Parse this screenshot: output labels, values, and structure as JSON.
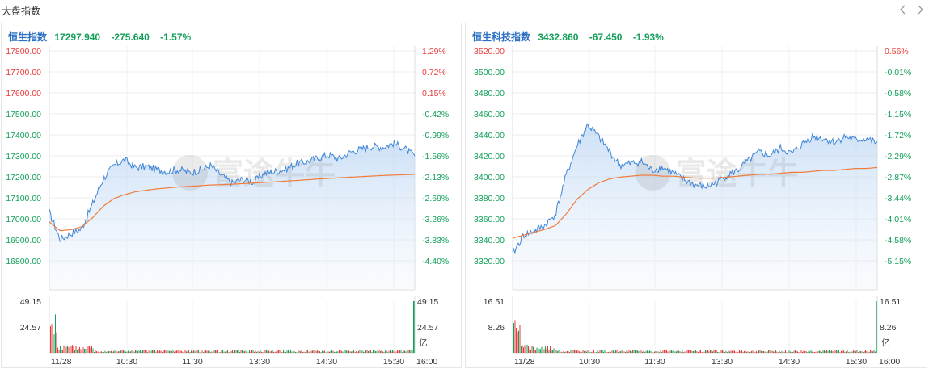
{
  "section": {
    "title": "大盘指数"
  },
  "nav": {
    "prev_icon": "chevron-left-icon",
    "next_icon": "chevron-right-icon"
  },
  "colors": {
    "up": "#e83a3a",
    "down": "#14a05a",
    "price_line": "#3f86d8",
    "avg_line": "#f07c3a",
    "name": "#2b6fc2"
  },
  "panels": [
    {
      "name": "恒生指数",
      "price": "17297.940",
      "change": "-275.640",
      "change_pct": "-1.57%",
      "left_ticks": [
        "17800.00",
        "17700.00",
        "17600.00",
        "17500.00",
        "17400.00",
        "17300.00",
        "17200.00",
        "17100.00",
        "17000.00",
        "16900.00",
        "16800.00"
      ],
      "right_ticks": [
        "1.29%",
        "0.72%",
        "0.15%",
        "-0.42%",
        "-0.99%",
        "-1.56%",
        "-2.13%",
        "-2.69%",
        "-3.26%",
        "-3.83%",
        "-4.40%"
      ],
      "right_tick_up_count": 3,
      "vol_left_ticks": [
        "49.15",
        "24.57"
      ],
      "vol_right_ticks": [
        "49.15",
        "24.57",
        "亿"
      ],
      "x_labels": [
        "11/28",
        "10:30",
        "11:30",
        "13:30",
        "14:30",
        "15:30",
        "16:00"
      ],
      "y_range": [
        16760,
        17840
      ],
      "vol_max": 49.15
    },
    {
      "name": "恒生科技指数",
      "price": "3432.860",
      "change": "-67.450",
      "change_pct": "-1.93%",
      "left_ticks": [
        "3520.00",
        "3500.00",
        "3480.00",
        "3460.00",
        "3440.00",
        "3420.00",
        "3400.00",
        "3380.00",
        "3360.00",
        "3340.00",
        "3320.00"
      ],
      "right_ticks": [
        "0.56%",
        "-0.01%",
        "-0.58%",
        "-1.15%",
        "-1.72%",
        "-2.29%",
        "-2.87%",
        "-3.44%",
        "-4.01%",
        "-4.58%",
        "-5.15%"
      ],
      "right_tick_up_count": 1,
      "vol_left_ticks": [
        "16.51",
        "8.26"
      ],
      "vol_right_ticks": [
        "16.51",
        "8.26",
        "亿"
      ],
      "x_labels": [
        "11/28",
        "10:30",
        "11:30",
        "13:30",
        "14:30",
        "15:30",
        "16:00"
      ],
      "y_range": [
        3311.6,
        3528.4
      ],
      "vol_max": 16.51
    }
  ],
  "chart_data": [
    {
      "type": "line",
      "title": "恒生指数",
      "x": [
        "09:30",
        "09:40",
        "09:50",
        "10:00",
        "10:10",
        "10:20",
        "10:30",
        "10:40",
        "10:50",
        "11:00",
        "11:10",
        "11:20",
        "11:30",
        "11:40",
        "11:50",
        "12:00",
        "13:00",
        "13:10",
        "13:20",
        "13:30",
        "13:40",
        "13:50",
        "14:00",
        "14:10",
        "14:20",
        "14:30",
        "14:40",
        "14:50",
        "15:00",
        "15:10",
        "15:20",
        "15:30",
        "15:40",
        "15:50",
        "16:00"
      ],
      "series": [
        {
          "values": [
            17010,
            16870,
            16900,
            16925,
            17050,
            17180,
            17250,
            17280,
            17240,
            17245,
            17230,
            17220,
            17230,
            17215,
            17225,
            17250,
            17200,
            17160,
            17180,
            17165,
            17210,
            17220,
            17230,
            17260,
            17270,
            17290,
            17305,
            17285,
            17320,
            17335,
            17350,
            17345,
            17365,
            17340,
            17298
          ]
        },
        {
          "values": [
            16960,
            16915,
            16920,
            16935,
            16980,
            17040,
            17080,
            17100,
            17115,
            17123,
            17130,
            17135,
            17140,
            17143,
            17146,
            17150,
            17152,
            17154,
            17157,
            17160,
            17163,
            17166,
            17170,
            17173,
            17177,
            17181,
            17184,
            17187,
            17190,
            17193,
            17196,
            17199,
            17201,
            17203,
            17205
          ]
        }
      ],
      "ylim": [
        16760,
        17840
      ]
    },
    {
      "type": "line",
      "title": "恒生科技指数",
      "x": [
        "09:30",
        "09:40",
        "09:50",
        "10:00",
        "10:10",
        "10:20",
        "10:30",
        "10:40",
        "10:50",
        "11:00",
        "11:10",
        "11:20",
        "11:30",
        "11:40",
        "11:50",
        "12:00",
        "13:00",
        "13:10",
        "13:20",
        "13:30",
        "13:40",
        "13:50",
        "14:00",
        "14:10",
        "14:20",
        "14:30",
        "14:40",
        "14:50",
        "15:00",
        "15:10",
        "15:20",
        "15:30",
        "15:40",
        "15:50",
        "16:00"
      ],
      "series": [
        {
          "values": [
            3318,
            3338,
            3342,
            3348,
            3360,
            3400,
            3430,
            3452,
            3440,
            3425,
            3410,
            3412,
            3414,
            3405,
            3408,
            3402,
            3395,
            3390,
            3388,
            3392,
            3400,
            3405,
            3415,
            3424,
            3420,
            3428,
            3422,
            3432,
            3440,
            3438,
            3434,
            3440,
            3436,
            3438,
            3432.86
          ]
        },
        {
          "values": [
            3335,
            3338,
            3341,
            3344,
            3348,
            3360,
            3375,
            3385,
            3392,
            3396,
            3398,
            3399,
            3400,
            3400,
            3399,
            3399,
            3398,
            3397,
            3397,
            3397,
            3398,
            3399,
            3400,
            3401,
            3401,
            3402,
            3403,
            3403,
            3404,
            3405,
            3405,
            3406,
            3407,
            3407,
            3408
          ]
        }
      ],
      "ylim": [
        3311.6,
        3528.4
      ]
    }
  ]
}
